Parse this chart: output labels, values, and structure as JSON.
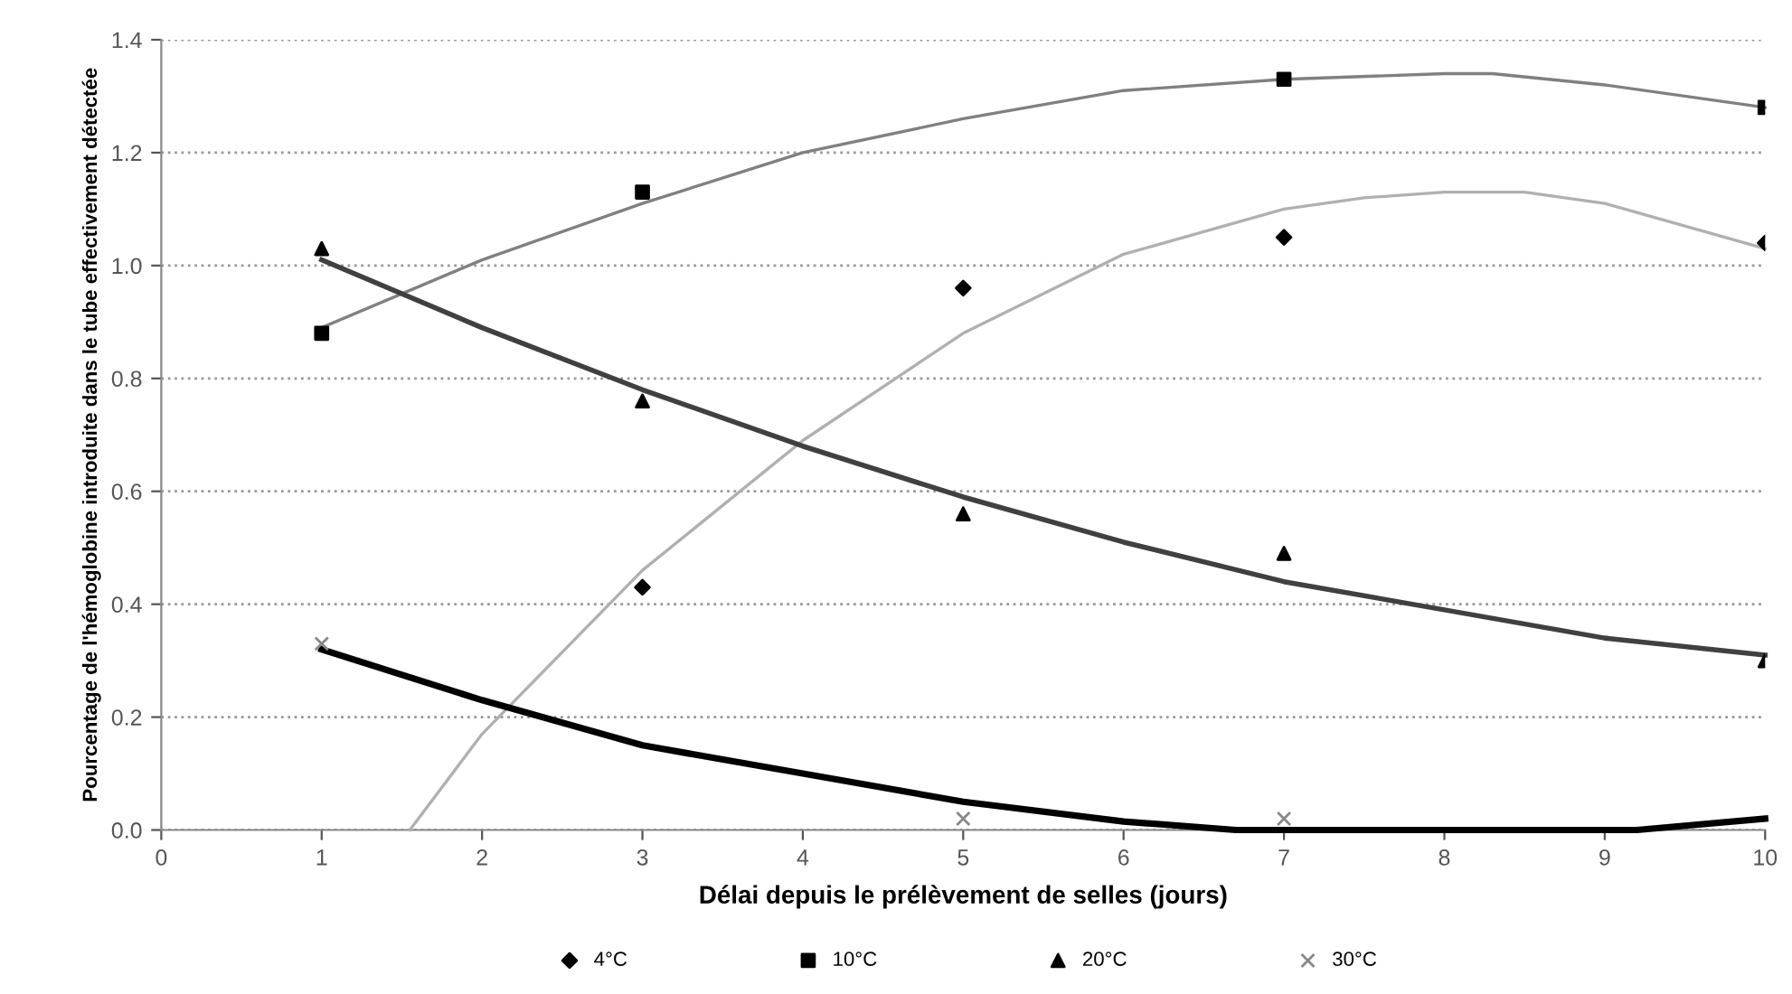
{
  "chart_data": {
    "type": "scatter",
    "xlabel": "Délai depuis le prélèvement de selles (jours)",
    "ylabel": "Pourcentage de l'hémoglobine introduite dans le tube effectivement détectée",
    "x": [
      1,
      3,
      5,
      7,
      10
    ],
    "series": [
      {
        "name": "4°C",
        "marker": "diamond",
        "color": "#000000",
        "values": [
          null,
          0.43,
          0.96,
          1.05,
          1.04
        ]
      },
      {
        "name": "10°C",
        "marker": "square",
        "color": "#000000",
        "values": [
          0.88,
          1.13,
          null,
          1.33,
          1.28
        ]
      },
      {
        "name": "20°C",
        "marker": "triangle",
        "color": "#000000",
        "values": [
          1.03,
          0.76,
          0.56,
          0.49,
          0.3
        ]
      },
      {
        "name": "30°C",
        "marker": "cross",
        "color": "#888888",
        "values": [
          0.33,
          null,
          0.02,
          0.02,
          null
        ]
      },
      {
        "type": "line",
        "color": "#b0b0b0",
        "x": [
          1.55,
          2,
          3,
          4,
          5,
          6,
          7,
          7.5,
          8,
          8.5,
          9,
          10
        ],
        "values": [
          0,
          0.17,
          0.46,
          0.69,
          0.88,
          1.02,
          1.1,
          1.12,
          1.13,
          1.13,
          1.11,
          1.03
        ]
      },
      {
        "type": "line",
        "color": "#808080",
        "x": [
          1,
          2,
          3,
          4,
          5,
          6,
          7,
          8,
          8.3,
          9,
          10
        ],
        "values": [
          0.89,
          1.01,
          1.11,
          1.2,
          1.26,
          1.31,
          1.33,
          1.34,
          1.34,
          1.32,
          1.28
        ]
      },
      {
        "type": "line",
        "color": "#404040",
        "x": [
          1,
          2,
          3,
          4,
          5,
          6,
          7,
          8,
          9,
          10
        ],
        "values": [
          1.01,
          0.89,
          0.78,
          0.68,
          0.59,
          0.51,
          0.44,
          0.39,
          0.34,
          0.31
        ]
      },
      {
        "type": "line",
        "color": "#000000",
        "x": [
          1,
          2,
          3,
          4,
          5,
          6,
          6.7,
          9.2,
          10
        ],
        "values": [
          0.32,
          0.23,
          0.15,
          0.1,
          0.05,
          0.015,
          0,
          0,
          0.02
        ]
      }
    ],
    "xlim": [
      0,
      10
    ],
    "xticks": [
      0,
      1,
      2,
      3,
      4,
      5,
      6,
      7,
      8,
      9,
      10
    ],
    "ylim": [
      0,
      1.4
    ],
    "yticks": [
      {
        "value": 0,
        "label": "0.0"
      },
      {
        "value": 0.2,
        "label": "0.2"
      },
      {
        "value": 0.4,
        "label": "0.4"
      },
      {
        "value": 0.6,
        "label": "0.6"
      },
      {
        "value": 0.8,
        "label": "0.8"
      },
      {
        "value": 1.0,
        "label": "1.0"
      },
      {
        "value": 1.2,
        "label": "1.2"
      },
      {
        "value": 1.4,
        "label": "1.4"
      }
    ],
    "grid": "y",
    "legend": "bottom",
    "line_style": "solid"
  }
}
